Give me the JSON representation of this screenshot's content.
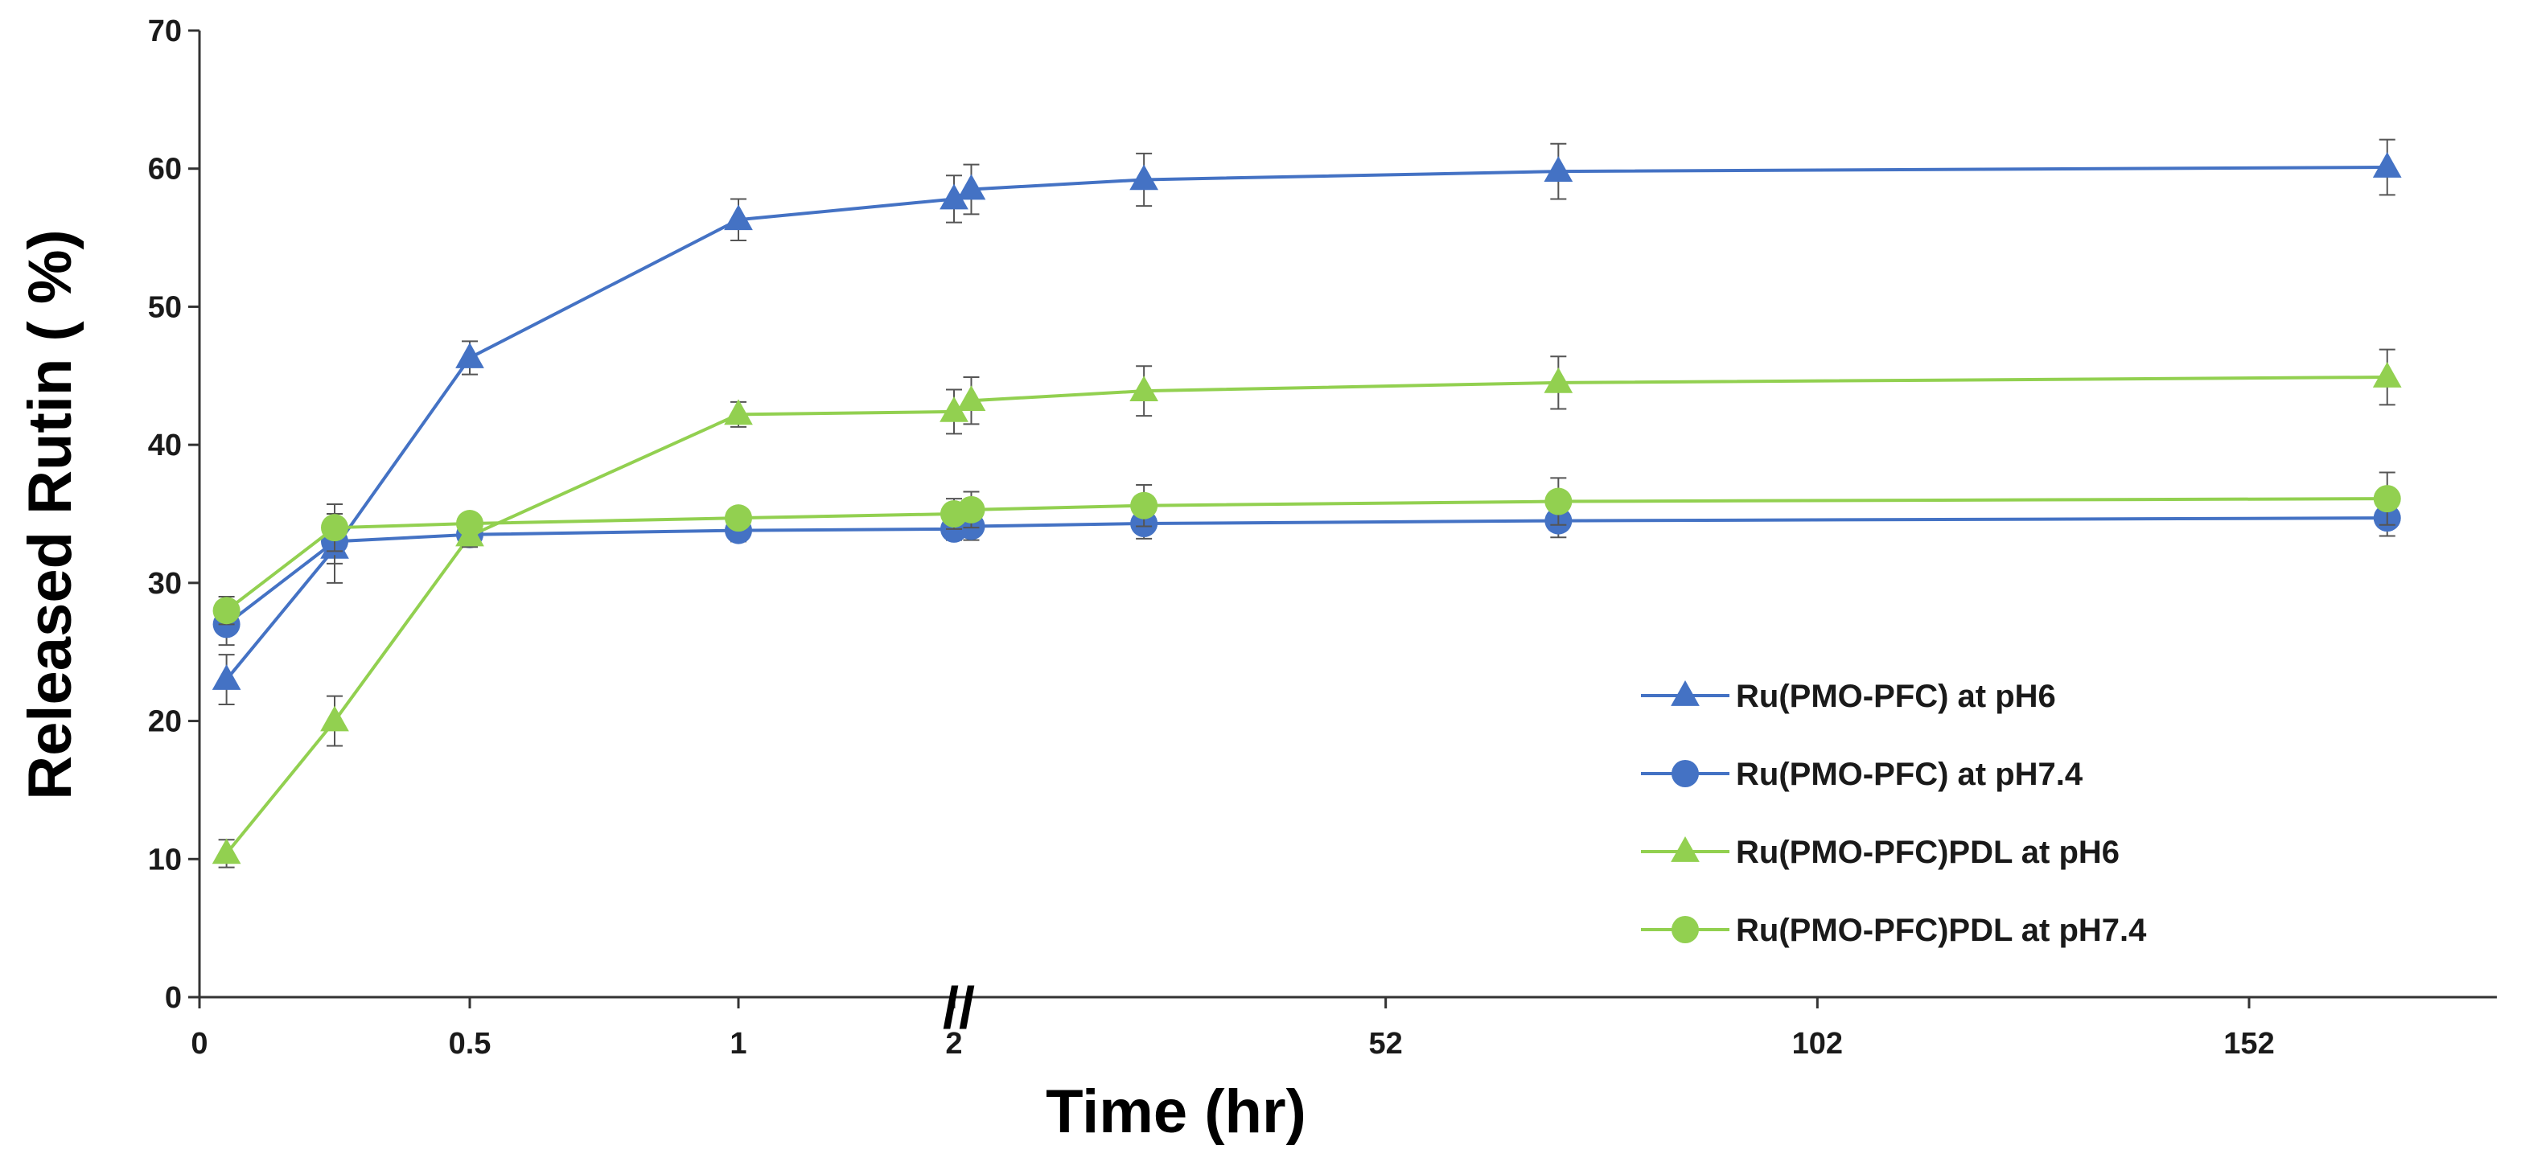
{
  "chart_data": {
    "type": "line",
    "xlabel": "Time (hr)",
    "ylabel": "Released Rutin ( %)",
    "ylim": [
      0,
      70
    ],
    "y_ticks": [
      "0",
      "10",
      "20",
      "30",
      "40",
      "50",
      "60",
      "70"
    ],
    "x_ticks": [
      "0",
      "0.5",
      "1",
      "2",
      "52",
      "102",
      "152"
    ],
    "axis_break": "//",
    "legend_position": "right",
    "series": [
      {
        "name": "Ru(PMO-PFC) at pH6",
        "color": "#4472C4",
        "marker": "triangle",
        "x": [
          0.05,
          0.25,
          0.5,
          1,
          2,
          4,
          24,
          72,
          168
        ],
        "y": [
          23,
          32.5,
          46.3,
          56.3,
          57.8,
          58.5,
          59.2,
          59.8,
          60.1
        ],
        "error": [
          1.8,
          2.5,
          1.2,
          1.5,
          1.7,
          1.8,
          1.9,
          2.0,
          2.0
        ]
      },
      {
        "name": "Ru(PMO-PFC) at pH7.4",
        "color": "#4472C4",
        "marker": "circle",
        "x": [
          0.05,
          0.25,
          0.5,
          1,
          2,
          4,
          24,
          72,
          168
        ],
        "y": [
          27,
          33,
          33.5,
          33.8,
          33.9,
          34.1,
          34.3,
          34.5,
          34.7
        ],
        "error": [
          1.5,
          1.6,
          0.8,
          0.8,
          0.8,
          1.0,
          1.1,
          1.2,
          1.3
        ]
      },
      {
        "name": "Ru(PMO-PFC)PDL at pH6",
        "color": "#92D050",
        "marker": "triangle",
        "x": [
          0.05,
          0.25,
          0.5,
          1,
          2,
          4,
          24,
          72,
          168
        ],
        "y": [
          10.4,
          20,
          33.4,
          42.2,
          42.4,
          43.2,
          43.9,
          44.5,
          44.9
        ],
        "error": [
          1.0,
          1.8,
          0.8,
          0.9,
          1.6,
          1.7,
          1.8,
          1.9,
          2.0
        ]
      },
      {
        "name": "Ru(PMO-PFC)PDL at pH7.4",
        "color": "#92D050",
        "marker": "circle",
        "x": [
          0.05,
          0.25,
          0.5,
          1,
          2,
          4,
          24,
          72,
          168
        ],
        "y": [
          28,
          34,
          34.3,
          34.7,
          35,
          35.3,
          35.6,
          35.9,
          36.1
        ],
        "error": [
          1.0,
          1.7,
          0.6,
          0.6,
          1.1,
          1.3,
          1.5,
          1.7,
          1.9
        ]
      }
    ]
  }
}
